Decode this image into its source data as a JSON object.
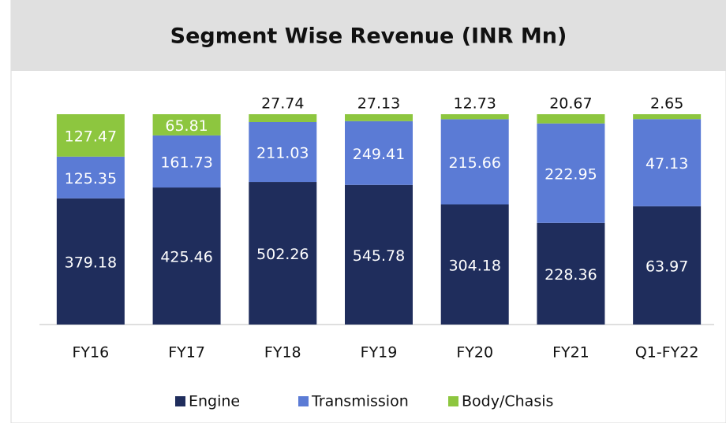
{
  "chart_data": {
    "type": "bar",
    "stacking": "percent",
    "title": "Segment Wise Revenue (INR Mn)",
    "categories": [
      "FY16",
      "FY17",
      "FY18",
      "FY19",
      "FY20",
      "FY21",
      "Q1-FY22"
    ],
    "series": [
      {
        "name": "Engine",
        "color": "#1f2d5c",
        "values": [
          379.18,
          425.46,
          502.26,
          545.78,
          304.18,
          228.36,
          63.97
        ]
      },
      {
        "name": "Transmission",
        "color": "#5b7bd5",
        "values": [
          125.35,
          161.73,
          211.03,
          249.41,
          215.66,
          222.95,
          47.13
        ]
      },
      {
        "name": "Body/Chasis",
        "color": "#8dc63f",
        "values": [
          127.47,
          65.81,
          27.74,
          27.13,
          12.73,
          20.67,
          2.65
        ]
      }
    ],
    "legend": "bottom"
  }
}
